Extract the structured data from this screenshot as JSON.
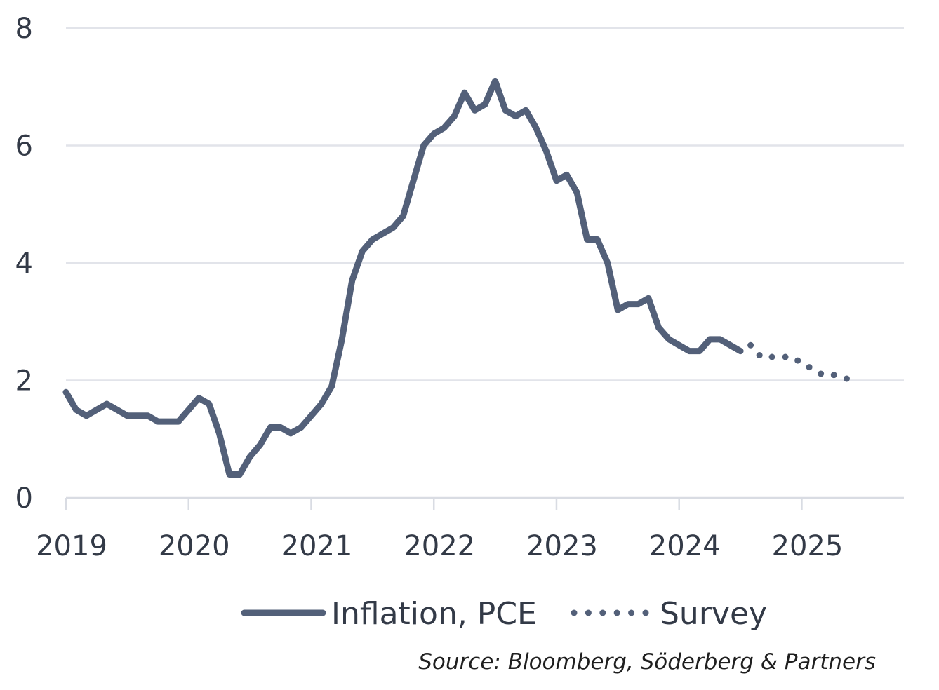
{
  "chart_data": {
    "type": "line",
    "title": "",
    "xlabel": "",
    "ylabel": "",
    "ylim": [
      0,
      8
    ],
    "y_ticks": [
      0,
      2,
      4,
      6,
      8
    ],
    "x_range": [
      2019.0,
      2025.833
    ],
    "x_ticks": [
      {
        "value": 2019,
        "label": "2019"
      },
      {
        "value": 2020,
        "label": "2020"
      },
      {
        "value": 2021,
        "label": "2021"
      },
      {
        "value": 2022,
        "label": "2022"
      },
      {
        "value": 2023,
        "label": "2023"
      },
      {
        "value": 2024,
        "label": "2024"
      },
      {
        "value": 2025,
        "label": "2025"
      }
    ],
    "grid": {
      "horizontal": true,
      "vertical": false
    },
    "legend_position": "bottom-center",
    "source": "Source: Bloomberg, Söderberg & Partners",
    "series": [
      {
        "name": "Inflation, PCE",
        "style": "solid",
        "color": "#536079",
        "points": [
          [
            2019.0,
            1.8
          ],
          [
            2019.083,
            1.5
          ],
          [
            2019.167,
            1.4
          ],
          [
            2019.25,
            1.5
          ],
          [
            2019.333,
            1.6
          ],
          [
            2019.417,
            1.5
          ],
          [
            2019.5,
            1.4
          ],
          [
            2019.583,
            1.4
          ],
          [
            2019.667,
            1.4
          ],
          [
            2019.75,
            1.3
          ],
          [
            2019.833,
            1.3
          ],
          [
            2019.917,
            1.3
          ],
          [
            2020.0,
            1.5
          ],
          [
            2020.083,
            1.7
          ],
          [
            2020.167,
            1.6
          ],
          [
            2020.25,
            1.1
          ],
          [
            2020.333,
            0.4
          ],
          [
            2020.417,
            0.4
          ],
          [
            2020.5,
            0.7
          ],
          [
            2020.583,
            0.9
          ],
          [
            2020.667,
            1.2
          ],
          [
            2020.75,
            1.2
          ],
          [
            2020.833,
            1.1
          ],
          [
            2020.917,
            1.2
          ],
          [
            2021.0,
            1.4
          ],
          [
            2021.083,
            1.6
          ],
          [
            2021.167,
            1.9
          ],
          [
            2021.25,
            2.7
          ],
          [
            2021.333,
            3.7
          ],
          [
            2021.417,
            4.2
          ],
          [
            2021.5,
            4.4
          ],
          [
            2021.583,
            4.5
          ],
          [
            2021.667,
            4.6
          ],
          [
            2021.75,
            4.8
          ],
          [
            2021.833,
            5.4
          ],
          [
            2021.917,
            6.0
          ],
          [
            2022.0,
            6.2
          ],
          [
            2022.083,
            6.3
          ],
          [
            2022.167,
            6.5
          ],
          [
            2022.25,
            6.9
          ],
          [
            2022.333,
            6.6
          ],
          [
            2022.417,
            6.7
          ],
          [
            2022.5,
            7.1
          ],
          [
            2022.583,
            6.6
          ],
          [
            2022.667,
            6.5
          ],
          [
            2022.75,
            6.6
          ],
          [
            2022.833,
            6.3
          ],
          [
            2022.917,
            5.9
          ],
          [
            2023.0,
            5.4
          ],
          [
            2023.083,
            5.5
          ],
          [
            2023.167,
            5.2
          ],
          [
            2023.25,
            4.4
          ],
          [
            2023.333,
            4.4
          ],
          [
            2023.417,
            4.0
          ],
          [
            2023.5,
            3.2
          ],
          [
            2023.583,
            3.3
          ],
          [
            2023.667,
            3.3
          ],
          [
            2023.75,
            3.4
          ],
          [
            2023.833,
            2.9
          ],
          [
            2023.917,
            2.7
          ],
          [
            2024.0,
            2.6
          ],
          [
            2024.083,
            2.5
          ],
          [
            2024.167,
            2.5
          ],
          [
            2024.25,
            2.7
          ],
          [
            2024.333,
            2.7
          ],
          [
            2024.417,
            2.6
          ],
          [
            2024.5,
            2.5
          ]
        ]
      },
      {
        "name": "Survey",
        "style": "dotted",
        "color": "#536079",
        "points": [
          [
            2024.583,
            2.6
          ],
          [
            2024.667,
            2.4
          ],
          [
            2024.75,
            2.4
          ],
          [
            2024.833,
            2.4
          ],
          [
            2024.917,
            2.4
          ],
          [
            2025.0,
            2.3
          ],
          [
            2025.083,
            2.2
          ],
          [
            2025.167,
            2.1
          ],
          [
            2025.25,
            2.1
          ],
          [
            2025.333,
            2.05
          ],
          [
            2025.417,
            2.0
          ]
        ]
      }
    ]
  }
}
